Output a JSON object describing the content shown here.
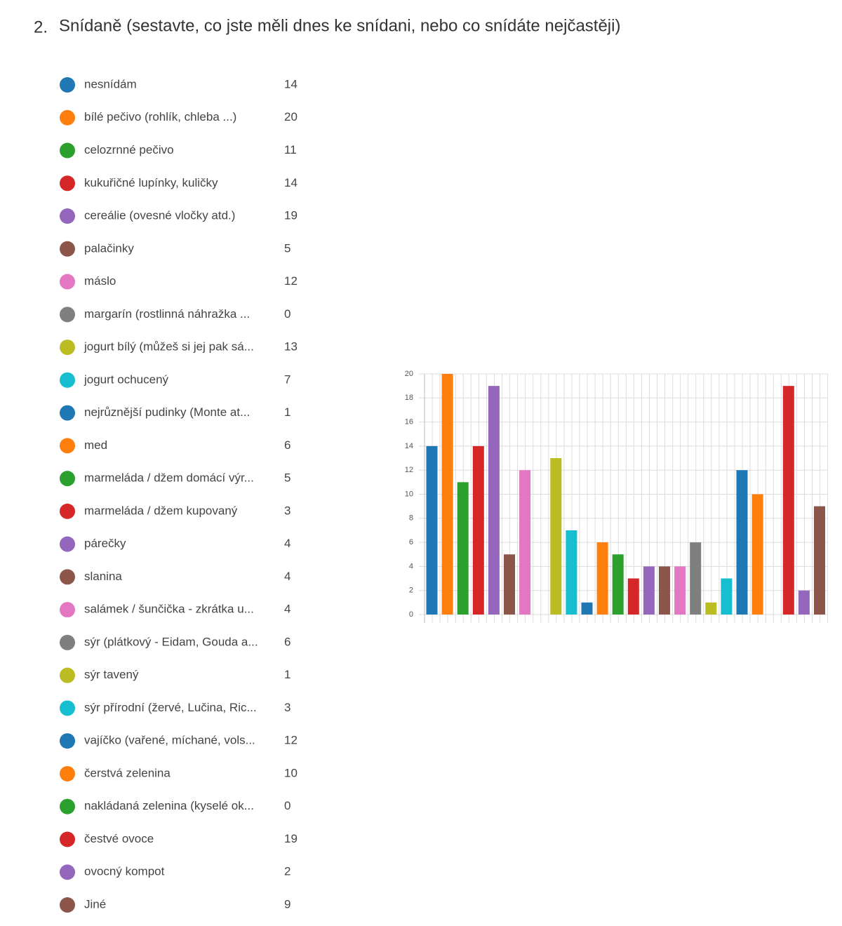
{
  "chart_data": {
    "type": "bar",
    "number": "2.",
    "title": "Snídaně (sestavte, co jste měli dnes ke snídani, nebo co snídáte nejčastěji)",
    "categories": [
      "nesnídám",
      "bílé pečivo (rohlík, chleba ...)",
      "celozrnné pečivo",
      "kukuřičné lupínky, kuličky",
      "cereálie (ovesné vločky atd.)",
      "palačinky",
      "máslo",
      "margarín (rostlinná náhražka ...",
      "jogurt bílý (můžeš si jej pak sá...",
      "jogurt ochucený",
      "nejrůznější pudinky (Monte at...",
      "med",
      "marmeláda / džem domácí výr...",
      "marmeláda / džem kupovaný",
      "párečky",
      "slanina",
      "salámek / šunčička - zkrátka u...",
      "sýr (plátkový - Eidam, Gouda a...",
      "sýr tavený",
      "sýr přírodní (žervé, Lučina, Ric...",
      "vajíčko (vařené, míchané, vols...",
      "čerstvá zelenina",
      "nakládaná zelenina (kyselé ok...",
      "čestvé ovoce",
      "ovocný kompot",
      "Jiné"
    ],
    "values": [
      14,
      20,
      11,
      14,
      19,
      5,
      12,
      0,
      13,
      7,
      1,
      6,
      5,
      3,
      4,
      4,
      4,
      6,
      1,
      3,
      12,
      10,
      0,
      19,
      2,
      9
    ],
    "palette": [
      "#1f77b4",
      "#ff7f0e",
      "#2ca02c",
      "#d62728",
      "#9467bd",
      "#8c564b",
      "#e377c2",
      "#7f7f7f",
      "#bcbd22",
      "#17becf"
    ],
    "ylim": [
      0,
      20
    ],
    "yticks": [
      0,
      2,
      4,
      6,
      8,
      10,
      12,
      14,
      16,
      18,
      20
    ],
    "grid": true
  }
}
